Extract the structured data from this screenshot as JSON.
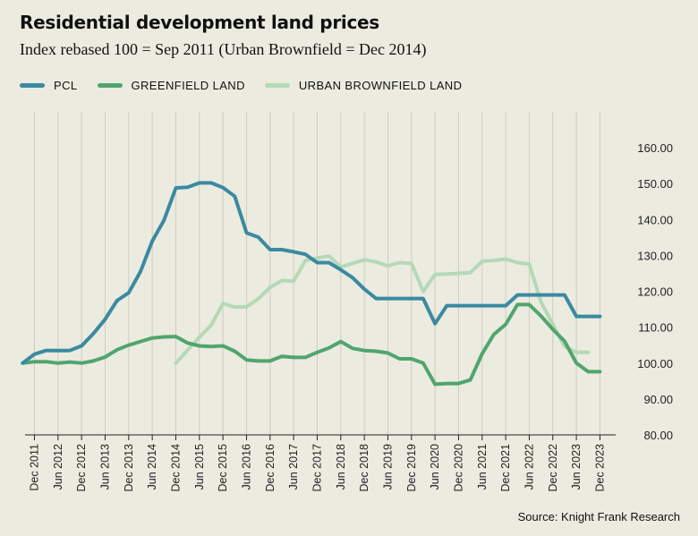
{
  "colors": {
    "background": "#ecebe0",
    "grid": "#cfcdbf",
    "pcl": "#3a8aa0",
    "greenfield": "#4fa56e",
    "brownfield": "#b4d9b8"
  },
  "chart_data": {
    "type": "line",
    "title": "Residential development land prices",
    "subtitle": "Index rebased 100 = Sep 2011 (Urban Brownfield = Dec 2014)",
    "source": "Source: Knight Frank Research",
    "x_tick_labels": [
      "Dec 2011",
      "Jun 2012",
      "Dec 2012",
      "Jun 2013",
      "Dec 2013",
      "Jun 2014",
      "Dec 2014",
      "Jun 2015",
      "Dec 2015",
      "Jun 2016",
      "Dec 2016",
      "Jun 2017",
      "Dec 2017",
      "Jun 2018",
      "Dec 2018",
      "Jun 2019",
      "Dec 2019",
      "Jun 2020",
      "Dec 2020",
      "Jun 2021",
      "Dec 2021",
      "Jun 2022",
      "Dec 2022",
      "Jun 2023",
      "Dec 2023"
    ],
    "y_tick_labels": [
      "80.00",
      "90.00",
      "100.00",
      "110.00",
      "120.00",
      "130.00",
      "140.00",
      "150.00",
      "160.00"
    ],
    "ylim": [
      80,
      170
    ],
    "grid": true,
    "legend": "top-left",
    "series": [
      {
        "name": "PCL",
        "start": "Sep 2011",
        "step_months": 3,
        "values": [
          100.0,
          102.5,
          103.5,
          103.5,
          103.5,
          104.8,
          108.2,
          112.2,
          117.4,
          119.6,
          125.5,
          134.0,
          139.8,
          148.8,
          149.0,
          150.2,
          150.2,
          148.9,
          146.5,
          136.3,
          135.1,
          131.6,
          131.6,
          131.0,
          130.3,
          128.0,
          128.0,
          126.0,
          123.8,
          120.6,
          118.0,
          118.0,
          118.0,
          118.0,
          118.0,
          111.0,
          116.0,
          116.0,
          116.0,
          116.0,
          116.0,
          116.0,
          119.0,
          119.0,
          119.0,
          119.0,
          119.0,
          113.0,
          113.0,
          113.0
        ]
      },
      {
        "name": "GREENFIELD LAND",
        "start": "Sep 2011",
        "step_months": 3,
        "values": [
          100.0,
          100.4,
          100.4,
          100.0,
          100.3,
          100.0,
          100.6,
          101.7,
          103.7,
          105.0,
          106.0,
          107.0,
          107.3,
          107.4,
          105.6,
          104.8,
          104.6,
          104.8,
          103.3,
          100.9,
          100.6,
          100.6,
          101.9,
          101.6,
          101.6,
          103.0,
          104.2,
          106.0,
          104.1,
          103.5,
          103.3,
          102.8,
          101.2,
          101.2,
          100.0,
          94.1,
          94.3,
          94.3,
          95.3,
          102.6,
          108.0,
          110.8,
          116.3,
          116.3,
          113.1,
          109.4,
          106.1,
          100.0,
          97.6,
          97.6
        ]
      },
      {
        "name": "URBAN BROWNFIELD LAND",
        "start": "Dec 2014",
        "step_months": 3,
        "values": [
          100.0,
          103.6,
          107.2,
          110.6,
          116.6,
          115.6,
          115.7,
          117.9,
          121.1,
          123.0,
          122.8,
          128.6,
          129.3,
          129.8,
          126.8,
          127.8,
          128.8,
          128.2,
          127.1,
          128.0,
          127.8,
          120.0,
          124.7,
          124.8,
          125.0,
          125.2,
          128.4,
          128.6,
          129.0,
          128.0,
          127.6,
          117.0,
          110.8,
          104.6,
          103.0,
          103.0
        ]
      }
    ]
  }
}
